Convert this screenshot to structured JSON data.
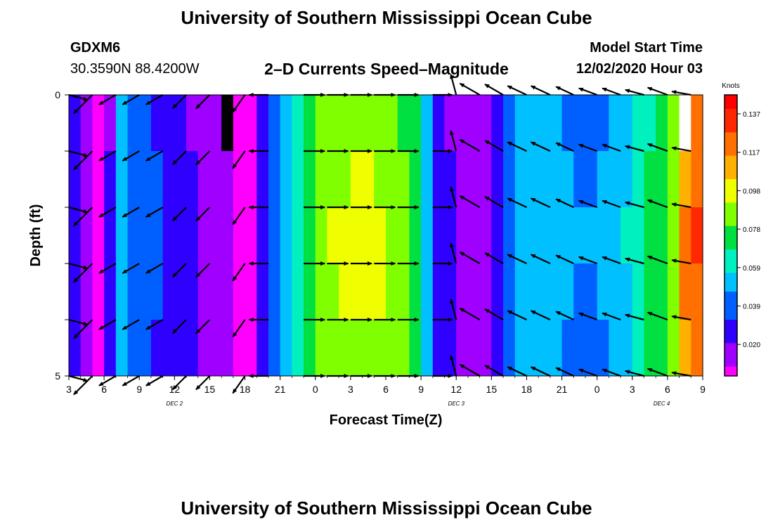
{
  "header": {
    "title": "University of Southern Mississippi Ocean Cube",
    "station_id": "GDXM6",
    "coordinates": "30.3590N 88.4200W",
    "subtitle": "2–D Currents Speed–Magnitude",
    "model_start_label": "Model Start Time",
    "model_start_value": "12/02/2020 Hour 03"
  },
  "footer": {
    "title": "University of Southern Mississippi Ocean Cube"
  },
  "chart_data": {
    "type": "heatmap",
    "xlabel": "Forecast Time(Z)",
    "ylabel": "Depth (ft)",
    "x_range_hours": [
      0,
      54
    ],
    "x_tick_labels": [
      "3",
      "6",
      "9",
      "12",
      "15",
      "18",
      "21",
      "0",
      "3",
      "6",
      "9",
      "12",
      "15",
      "18",
      "21",
      "0",
      "3",
      "6",
      "9"
    ],
    "day_labels": [
      {
        "label": "DEC 2",
        "hour": 9
      },
      {
        "label": "DEC 3",
        "hour": 33
      },
      {
        "label": "DEC 4",
        "hour": 50.5
      }
    ],
    "ylim": [
      0,
      5
    ],
    "y_tick_labels": [
      "0",
      "",
      "",
      "",
      "",
      "5"
    ],
    "colorbar": {
      "title": "Knots",
      "ticks": [
        "0.137",
        "0.117",
        "0.098",
        "0.078",
        "0.059",
        "0.039",
        "0.020"
      ],
      "range": [
        0.005,
        0.145
      ],
      "colors": [
        "#ff00ff",
        "#a000ff",
        "#3000ff",
        "#0060ff",
        "#00c0ff",
        "#00f0c0",
        "#00e040",
        "#80ff00",
        "#f0ff00",
        "#ffb000",
        "#ff7000",
        "#ff2800",
        "#ff0000"
      ]
    },
    "speed_profile": {
      "hours": [
        0,
        1,
        2,
        3,
        4,
        5,
        6,
        7,
        8,
        9,
        10,
        11,
        12,
        13,
        14,
        15,
        16,
        17,
        18,
        19,
        20,
        21,
        22,
        23,
        24,
        25,
        26,
        27,
        28,
        29,
        30,
        31,
        32,
        33,
        34,
        35,
        36,
        37,
        38,
        39,
        40,
        41,
        42,
        43,
        44,
        45,
        46,
        47,
        48,
        49,
        50,
        51,
        52,
        53,
        54
      ],
      "speed": [
        0.028,
        0.018,
        0.008,
        0.024,
        0.05,
        0.044,
        0.04,
        0.036,
        0.032,
        0.03,
        0.024,
        0.022,
        0.02,
        0.012,
        0.01,
        0.01,
        0.028,
        0.04,
        0.052,
        0.064,
        0.08,
        0.09,
        0.094,
        0.096,
        0.098,
        0.098,
        0.096,
        0.092,
        0.086,
        0.076,
        0.056,
        0.03,
        0.024,
        0.02,
        0.018,
        0.02,
        0.026,
        0.04,
        0.052,
        0.056,
        0.055,
        0.052,
        0.048,
        0.046,
        0.046,
        0.048,
        0.052,
        0.058,
        0.064,
        0.074,
        0.08,
        0.09,
        0.12,
        0.13,
        0.11
      ]
    },
    "layer_factors": [
      0.92,
      0.96,
      1.0,
      0.98,
      0.94
    ],
    "missing_cells": [
      {
        "hour": 13,
        "layer": 0,
        "color": "#000000"
      },
      {
        "hour": 52,
        "layer": 0,
        "color": "#ffffff"
      }
    ],
    "vector_rows_depth": [
      0,
      1,
      2,
      3,
      4,
      5
    ],
    "vectors": {
      "hours": [
        0,
        2,
        4,
        6,
        8,
        10,
        12,
        15,
        17,
        20,
        22,
        24,
        26,
        28,
        31,
        33,
        35,
        37,
        39,
        41,
        43,
        45,
        47,
        49,
        51,
        53
      ],
      "angles_deg": [
        15,
        135,
        150,
        150,
        150,
        135,
        135,
        125,
        180,
        0,
        0,
        0,
        0,
        0,
        0,
        255,
        210,
        210,
        205,
        205,
        205,
        200,
        200,
        195,
        200,
        190
      ],
      "lengths": [
        0.55,
        0.75,
        0.55,
        0.55,
        0.55,
        0.55,
        0.55,
        0.6,
        0.55,
        0.6,
        0.6,
        0.6,
        0.6,
        0.6,
        0.55,
        0.6,
        0.65,
        0.6,
        0.6,
        0.6,
        0.55,
        0.55,
        0.55,
        0.55,
        0.6,
        0.55
      ]
    }
  }
}
